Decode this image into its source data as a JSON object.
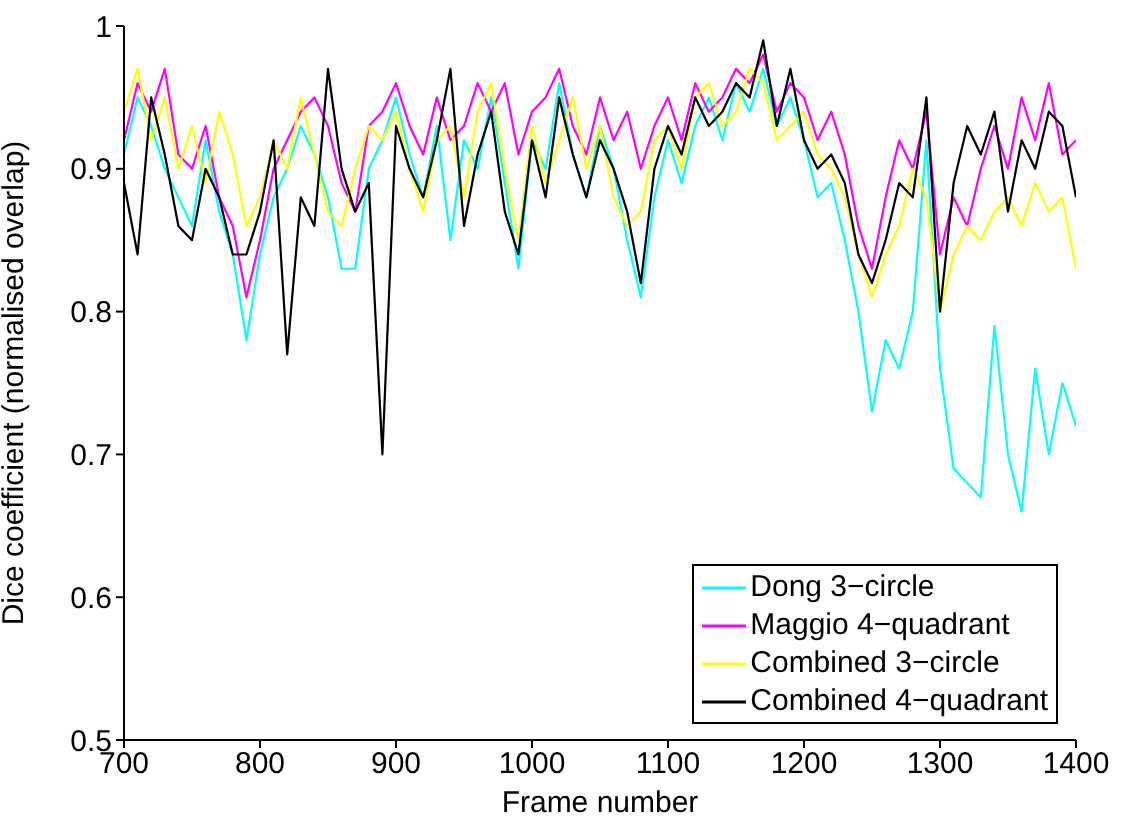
{
  "chart_data": {
    "type": "line",
    "xlabel": "Frame number",
    "ylabel": "Dice coefficient (normalised overlap)",
    "x": [
      700,
      710,
      720,
      730,
      740,
      750,
      760,
      770,
      780,
      790,
      800,
      810,
      820,
      830,
      840,
      850,
      860,
      870,
      880,
      890,
      900,
      910,
      920,
      930,
      940,
      950,
      960,
      970,
      980,
      990,
      1000,
      1010,
      1020,
      1030,
      1040,
      1050,
      1060,
      1070,
      1080,
      1090,
      1100,
      1110,
      1120,
      1130,
      1140,
      1150,
      1160,
      1170,
      1180,
      1190,
      1200,
      1210,
      1220,
      1230,
      1240,
      1250,
      1260,
      1270,
      1280,
      1290,
      1300,
      1310,
      1320,
      1330,
      1340,
      1350,
      1360,
      1370,
      1380,
      1390,
      1400
    ],
    "series": [
      {
        "name": "Dong 3−circle",
        "color": "#00ffff",
        "values": [
          0.91,
          0.95,
          0.93,
          0.9,
          0.88,
          0.86,
          0.92,
          0.87,
          0.84,
          0.78,
          0.84,
          0.88,
          0.9,
          0.93,
          0.91,
          0.88,
          0.83,
          0.83,
          0.9,
          0.92,
          0.95,
          0.91,
          0.88,
          0.93,
          0.85,
          0.92,
          0.9,
          0.95,
          0.89,
          0.83,
          0.92,
          0.9,
          0.96,
          0.91,
          0.88,
          0.93,
          0.9,
          0.85,
          0.81,
          0.88,
          0.92,
          0.89,
          0.93,
          0.95,
          0.92,
          0.96,
          0.94,
          0.97,
          0.93,
          0.95,
          0.92,
          0.88,
          0.89,
          0.85,
          0.8,
          0.73,
          0.78,
          0.76,
          0.8,
          0.92,
          0.76,
          0.69,
          0.68,
          0.67,
          0.79,
          0.7,
          0.66,
          0.76,
          0.7,
          0.75,
          0.72
        ]
      },
      {
        "name": "Maggio 4−quadrant",
        "color": "#ff00ff",
        "values": [
          0.92,
          0.96,
          0.94,
          0.97,
          0.91,
          0.9,
          0.93,
          0.88,
          0.86,
          0.81,
          0.85,
          0.9,
          0.92,
          0.94,
          0.95,
          0.93,
          0.89,
          0.87,
          0.93,
          0.94,
          0.96,
          0.93,
          0.91,
          0.95,
          0.92,
          0.93,
          0.96,
          0.94,
          0.96,
          0.91,
          0.94,
          0.95,
          0.97,
          0.93,
          0.91,
          0.95,
          0.92,
          0.94,
          0.9,
          0.93,
          0.95,
          0.92,
          0.96,
          0.94,
          0.95,
          0.97,
          0.96,
          0.98,
          0.94,
          0.96,
          0.95,
          0.92,
          0.94,
          0.91,
          0.86,
          0.83,
          0.88,
          0.92,
          0.9,
          0.94,
          0.84,
          0.88,
          0.86,
          0.9,
          0.93,
          0.9,
          0.95,
          0.92,
          0.96,
          0.91,
          0.92
        ]
      },
      {
        "name": "Combined 3−circle",
        "color": "#ffff00",
        "values": [
          0.94,
          0.97,
          0.92,
          0.95,
          0.9,
          0.93,
          0.89,
          0.94,
          0.91,
          0.86,
          0.88,
          0.92,
          0.9,
          0.95,
          0.91,
          0.87,
          0.86,
          0.9,
          0.93,
          0.92,
          0.94,
          0.9,
          0.87,
          0.92,
          0.93,
          0.88,
          0.94,
          0.96,
          0.9,
          0.85,
          0.93,
          0.89,
          0.92,
          0.95,
          0.9,
          0.93,
          0.88,
          0.86,
          0.87,
          0.92,
          0.93,
          0.9,
          0.95,
          0.96,
          0.93,
          0.94,
          0.97,
          0.96,
          0.92,
          0.93,
          0.94,
          0.91,
          0.9,
          0.88,
          0.84,
          0.81,
          0.84,
          0.86,
          0.9,
          0.88,
          0.8,
          0.84,
          0.86,
          0.85,
          0.87,
          0.88,
          0.86,
          0.89,
          0.87,
          0.88,
          0.83
        ]
      },
      {
        "name": "Combined 4−quadrant",
        "color": "#000000",
        "values": [
          0.89,
          0.84,
          0.95,
          0.91,
          0.86,
          0.85,
          0.9,
          0.88,
          0.84,
          0.84,
          0.87,
          0.92,
          0.77,
          0.88,
          0.86,
          0.97,
          0.9,
          0.87,
          0.89,
          0.7,
          0.93,
          0.9,
          0.88,
          0.92,
          0.97,
          0.86,
          0.91,
          0.94,
          0.87,
          0.84,
          0.92,
          0.88,
          0.95,
          0.91,
          0.88,
          0.92,
          0.9,
          0.87,
          0.82,
          0.9,
          0.93,
          0.91,
          0.95,
          0.93,
          0.94,
          0.96,
          0.95,
          0.99,
          0.93,
          0.97,
          0.92,
          0.9,
          0.91,
          0.89,
          0.84,
          0.82,
          0.85,
          0.89,
          0.88,
          0.95,
          0.8,
          0.89,
          0.93,
          0.91,
          0.94,
          0.87,
          0.92,
          0.9,
          0.94,
          0.93,
          0.88
        ]
      }
    ],
    "xlim": [
      700,
      1400
    ],
    "xticks": [
      700,
      800,
      900,
      1000,
      1100,
      1200,
      1300,
      1400
    ],
    "ylim": [
      0.5,
      1
    ],
    "yticks": [
      0.5,
      0.6,
      0.7,
      0.8,
      0.9,
      1
    ],
    "legend": "bottom right",
    "grid": false,
    "marker": "none",
    "line_style": "solid"
  }
}
